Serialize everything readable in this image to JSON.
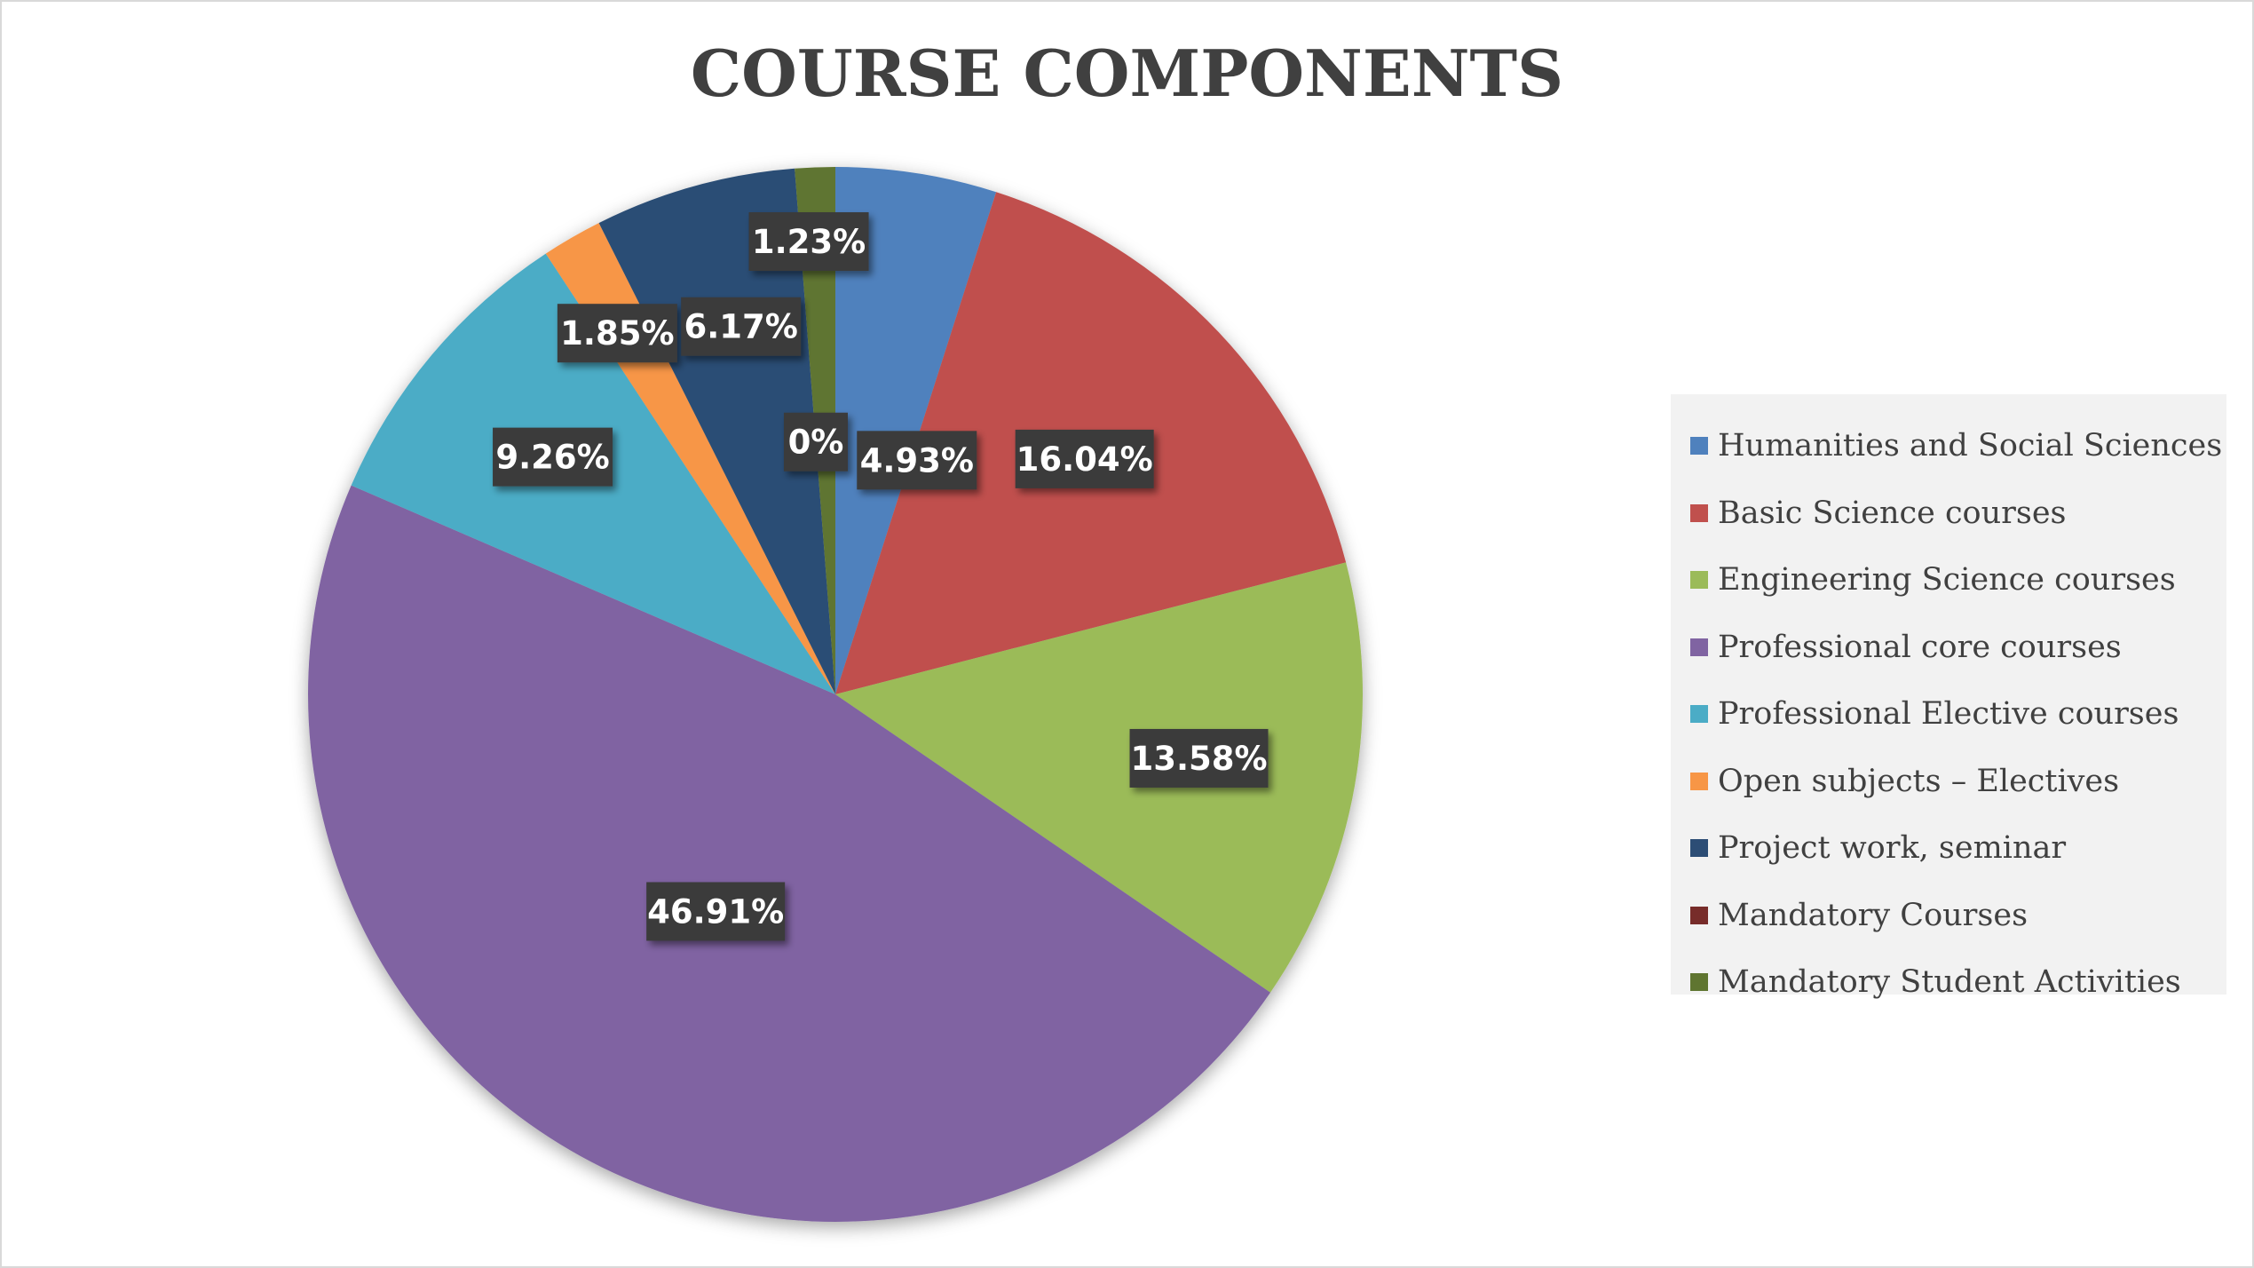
{
  "chart_data": {
    "type": "pie",
    "title": "COURSE COMPONENTS",
    "categories": [
      "Humanities and Social Sciences",
      "Basic Science courses",
      "Engineering Science courses",
      "Professional core courses",
      "Professional Elective courses",
      "Open subjects – Electives",
      "Project work, seminar",
      "Mandatory Courses",
      "Mandatory Student Activities"
    ],
    "values": [
      4.93,
      16.04,
      13.58,
      46.91,
      9.26,
      1.85,
      6.17,
      0,
      1.23
    ],
    "data_labels": [
      "4.93%",
      "16.04%",
      "13.58%",
      "46.91%",
      "9.26%",
      "1.85%",
      "6.17%",
      "0%",
      "1.23%"
    ],
    "colors": [
      "#4f81bd",
      "#c0504d",
      "#9bbb59",
      "#8064a2",
      "#4bacc6",
      "#f79646",
      "#2c4d75",
      "#772c2a",
      "#5f7530"
    ],
    "legend_position": "right",
    "data_label_style": {
      "background": "#3a3a3a",
      "color": "#ffffff"
    }
  }
}
